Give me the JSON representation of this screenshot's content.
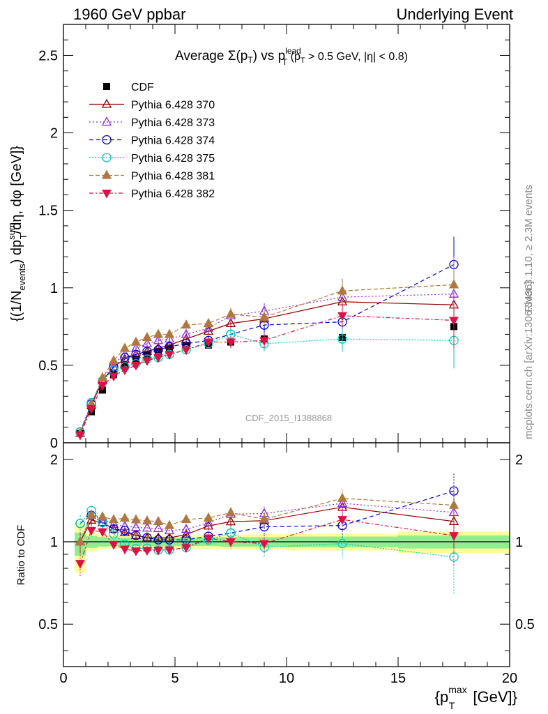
{
  "header": {
    "left": "1960 GeV ppbar",
    "right": "Underlying Event"
  },
  "side_labels": {
    "rivet": "Rivet 3.1.10, ≥ 2.3M events",
    "mcplots": "mcplots.cern.ch [arXiv:1306.3436]"
  },
  "watermark": "CDF_2015_I1388868",
  "chart_data": {
    "type": "scatter",
    "title": {
      "main": "Average Σ(p",
      "t_sub": "T",
      "vs": ") vs p",
      "lead_sup": "lead",
      "lead_sub": "T",
      "cut_open": " (p",
      "cut_sub": "T",
      "cut_text": " > 0.5 GeV, |η| < 0.8)"
    },
    "ylabel": {
      "a": "{(1/N",
      "events_sub": "events",
      "b": ") dp",
      "sum_sup": "sum",
      "t_sub": "T",
      "c": "/dη, dφ [GeV]}"
    },
    "xlabel": {
      "a": "{p",
      "max_sup": "max",
      "t_sub": "T",
      "b": " [GeV]}"
    },
    "ratio_ylabel": "Ratio to CDF",
    "xlim": [
      0,
      20
    ],
    "ylim_main": [
      0,
      2.7
    ],
    "ylim_ratio": [
      0.35,
      2.3
    ],
    "xticks": [
      "0",
      "5",
      "10",
      "15",
      "20"
    ],
    "yticks_main": [
      "0",
      "0.5",
      "1",
      "1.5",
      "2",
      "2.5"
    ],
    "yticks_ratio": [
      "0.5",
      "1",
      "2"
    ],
    "x": [
      0.75,
      1.25,
      1.75,
      2.25,
      2.75,
      3.25,
      3.75,
      4.25,
      4.75,
      5.5,
      6.5,
      7.5,
      9.0,
      12.5,
      17.5
    ],
    "series": [
      {
        "name": "CDF",
        "color": "#000000",
        "marker": "square-filled",
        "dash": "none",
        "values": [
          0.06,
          0.2,
          0.34,
          0.44,
          0.5,
          0.54,
          0.57,
          0.59,
          0.61,
          0.63,
          0.63,
          0.65,
          0.67,
          0.68,
          0.75
        ]
      },
      {
        "name": "Pythia 6.428 370",
        "color": "#990000",
        "marker": "triangle-open",
        "dash": "solid",
        "values": [
          0.06,
          0.24,
          0.4,
          0.49,
          0.54,
          0.57,
          0.59,
          0.61,
          0.63,
          0.67,
          0.72,
          0.77,
          0.8,
          0.91,
          0.89
        ]
      },
      {
        "name": "Pythia 6.428 373",
        "color": "#8a2be2",
        "marker": "triangle-open",
        "dash": "2,3",
        "values": [
          0.06,
          0.25,
          0.41,
          0.51,
          0.57,
          0.61,
          0.64,
          0.66,
          0.67,
          0.7,
          0.74,
          0.82,
          0.85,
          0.94,
          0.96
        ]
      },
      {
        "name": "Pythia 6.428 374",
        "color": "#0000dd",
        "marker": "circle-open",
        "dash": "6,4",
        "values": [
          0.07,
          0.25,
          0.4,
          0.49,
          0.55,
          0.57,
          0.59,
          0.6,
          0.62,
          0.64,
          0.66,
          0.7,
          0.76,
          0.78,
          1.15
        ]
      },
      {
        "name": "Pythia 6.428 375",
        "color": "#00ccbb",
        "marker": "circle-open",
        "dash": "2,2",
        "values": [
          0.07,
          0.26,
          0.4,
          0.47,
          0.49,
          0.51,
          0.54,
          0.55,
          0.57,
          0.6,
          0.64,
          0.7,
          0.64,
          0.67,
          0.66
        ]
      },
      {
        "name": "Pythia 6.428 381",
        "color": "#b07840",
        "marker": "triangle-filled",
        "dash": "6,3",
        "values": [
          0.06,
          0.25,
          0.42,
          0.53,
          0.61,
          0.65,
          0.68,
          0.7,
          0.7,
          0.76,
          0.77,
          0.83,
          0.81,
          0.98,
          1.02
        ]
      },
      {
        "name": "Pythia 6.428 382",
        "color": "#dd1144",
        "marker": "triangle-down-filled",
        "dash": "6,3,2,3",
        "values": [
          0.05,
          0.22,
          0.37,
          0.43,
          0.47,
          0.5,
          0.53,
          0.55,
          0.57,
          0.6,
          0.65,
          0.65,
          0.66,
          0.82,
          0.79
        ]
      }
    ],
    "model_errors": [
      0.005,
      0.01,
      0.015,
      0.015,
      0.015,
      0.015,
      0.02,
      0.02,
      0.02,
      0.02,
      0.025,
      0.04,
      0.05,
      0.08,
      0.18
    ],
    "band": {
      "inner_color": "#90ee90",
      "outer_color": "#ffff99",
      "bins": [
        {
          "lo": 0.5,
          "hi": 1.0,
          "inner": [
            0.89,
            1.08
          ],
          "outer": [
            0.77,
            1.17
          ]
        },
        {
          "lo": 1.0,
          "hi": 1.5,
          "inner": [
            0.95,
            1.05
          ],
          "outer": [
            0.92,
            1.08
          ]
        },
        {
          "lo": 1.5,
          "hi": 2.0,
          "inner": [
            0.96,
            1.04
          ],
          "outer": [
            0.94,
            1.06
          ]
        },
        {
          "lo": 2.0,
          "hi": 2.5,
          "inner": [
            0.965,
            1.035
          ],
          "outer": [
            0.945,
            1.055
          ]
        },
        {
          "lo": 2.5,
          "hi": 3.0,
          "inner": [
            0.965,
            1.035
          ],
          "outer": [
            0.945,
            1.055
          ]
        },
        {
          "lo": 3.0,
          "hi": 3.5,
          "inner": [
            0.965,
            1.035
          ],
          "outer": [
            0.945,
            1.055
          ]
        },
        {
          "lo": 3.5,
          "hi": 4.0,
          "inner": [
            0.965,
            1.035
          ],
          "outer": [
            0.945,
            1.055
          ]
        },
        {
          "lo": 4.0,
          "hi": 4.5,
          "inner": [
            0.965,
            1.035
          ],
          "outer": [
            0.945,
            1.055
          ]
        },
        {
          "lo": 4.5,
          "hi": 5.0,
          "inner": [
            0.965,
            1.035
          ],
          "outer": [
            0.945,
            1.055
          ]
        },
        {
          "lo": 5.0,
          "hi": 6.0,
          "inner": [
            0.965,
            1.035
          ],
          "outer": [
            0.945,
            1.055
          ]
        },
        {
          "lo": 6.0,
          "hi": 7.0,
          "inner": [
            0.965,
            1.035
          ],
          "outer": [
            0.94,
            1.06
          ]
        },
        {
          "lo": 7.0,
          "hi": 8.0,
          "inner": [
            0.96,
            1.04
          ],
          "outer": [
            0.94,
            1.06
          ]
        },
        {
          "lo": 8.0,
          "hi": 10.0,
          "inner": [
            0.96,
            1.04
          ],
          "outer": [
            0.935,
            1.065
          ]
        },
        {
          "lo": 10.0,
          "hi": 15.0,
          "inner": [
            0.955,
            1.045
          ],
          "outer": [
            0.93,
            1.07
          ]
        },
        {
          "lo": 15.0,
          "hi": 20.0,
          "inner": [
            0.945,
            1.055
          ],
          "outer": [
            0.91,
            1.09
          ]
        }
      ]
    }
  }
}
